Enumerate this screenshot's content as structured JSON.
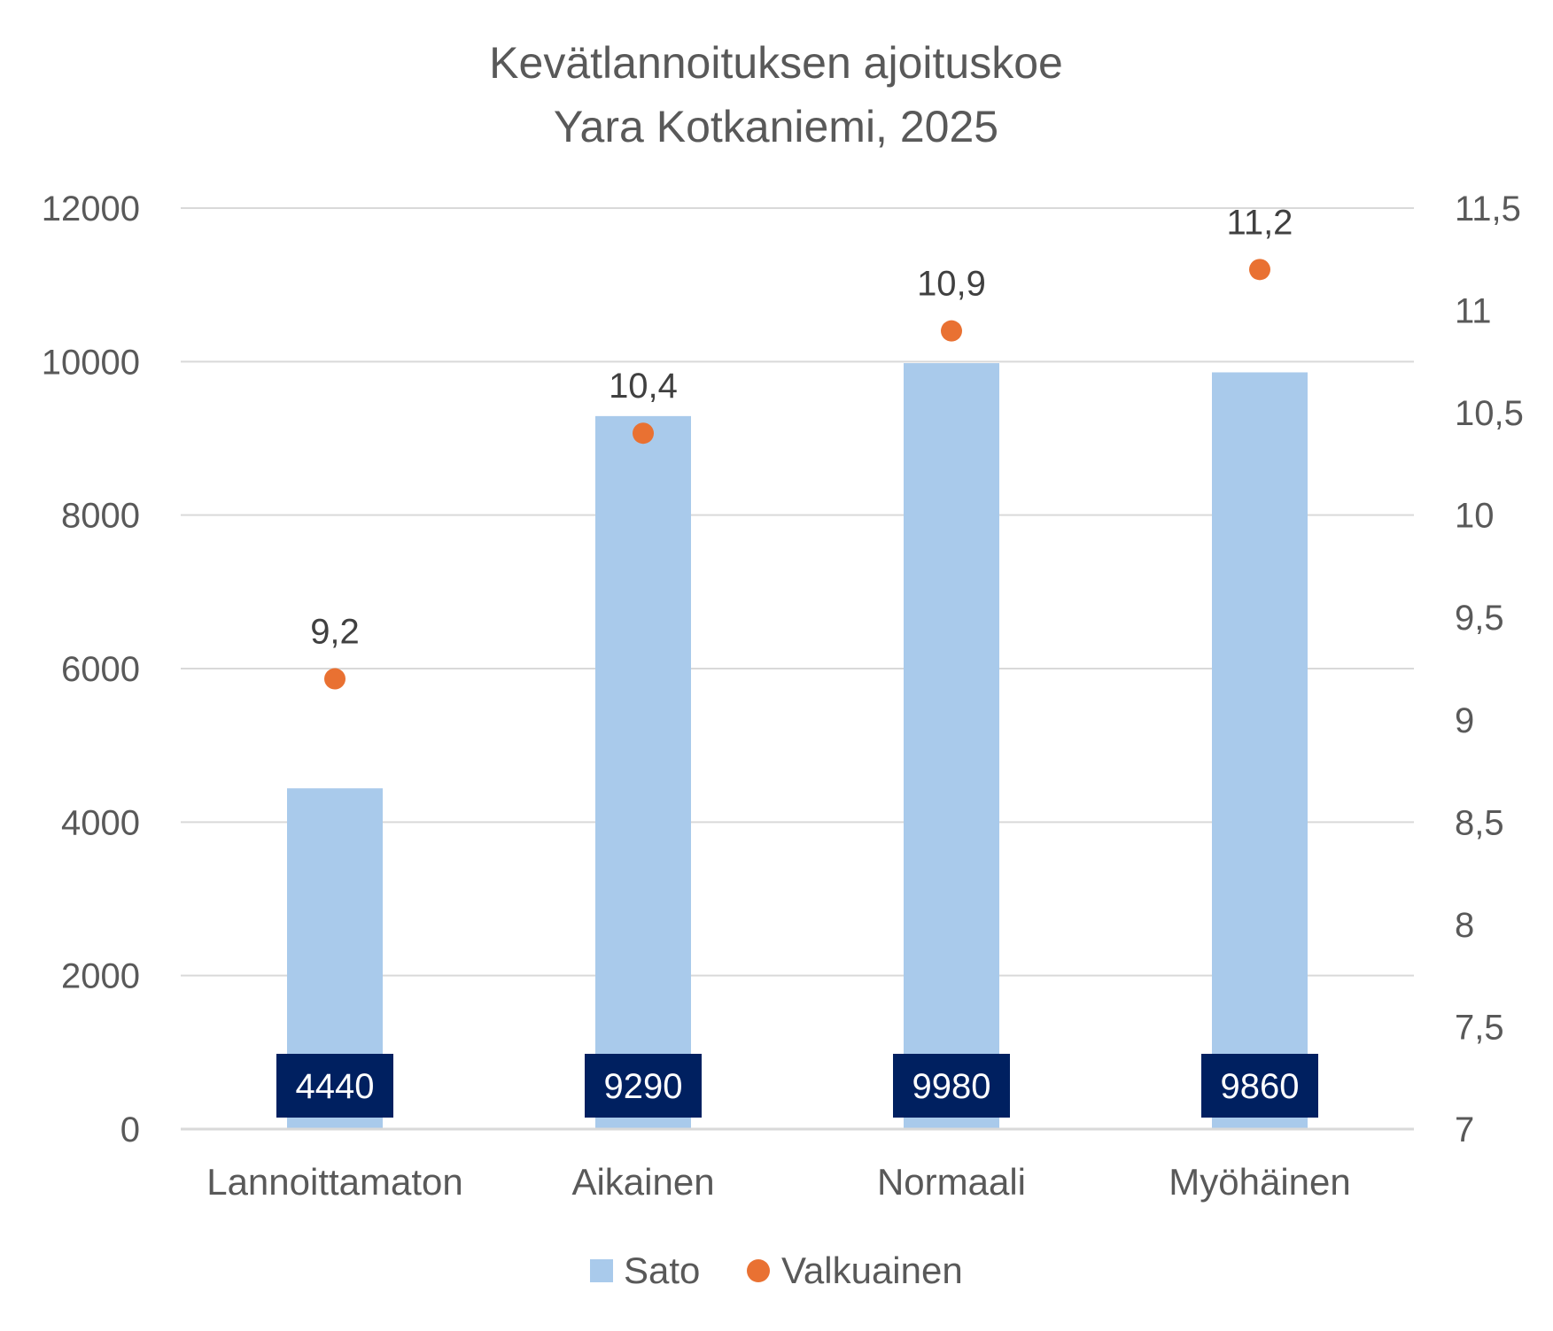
{
  "chart_data": {
    "type": "bar",
    "title": [
      "Kevätlannoituksen ajoituskoe",
      "Yara Kotkaniemi, 2025"
    ],
    "categories": [
      "Lannoittamaton",
      "Aikainen",
      "Normaali",
      "Myöhäinen"
    ],
    "series": [
      {
        "name": "Sato",
        "type": "bar",
        "axis": "left",
        "values": [
          4440,
          9290,
          9980,
          9860
        ],
        "color": "#A9CAEB"
      },
      {
        "name": "Valkuainen",
        "type": "scatter",
        "axis": "right",
        "values": [
          9.2,
          10.4,
          10.9,
          11.2
        ],
        "labels": [
          "9,2",
          "10,4",
          "10,9",
          "11,2"
        ],
        "color": "#E97132"
      }
    ],
    "y_left": {
      "min": 0,
      "max": 12000,
      "ticks": [
        "0",
        "2000",
        "4000",
        "6000",
        "8000",
        "10000",
        "12000"
      ]
    },
    "y_right": {
      "min": 7,
      "max": 11.5,
      "ticks": [
        "7",
        "7,5",
        "8",
        "8,5",
        "9",
        "9,5",
        "10",
        "10,5",
        "11",
        "11,5"
      ]
    },
    "grid": true,
    "legend_position": "bottom",
    "bar_label_style": {
      "background": "#002060",
      "color": "#ffffff"
    }
  }
}
